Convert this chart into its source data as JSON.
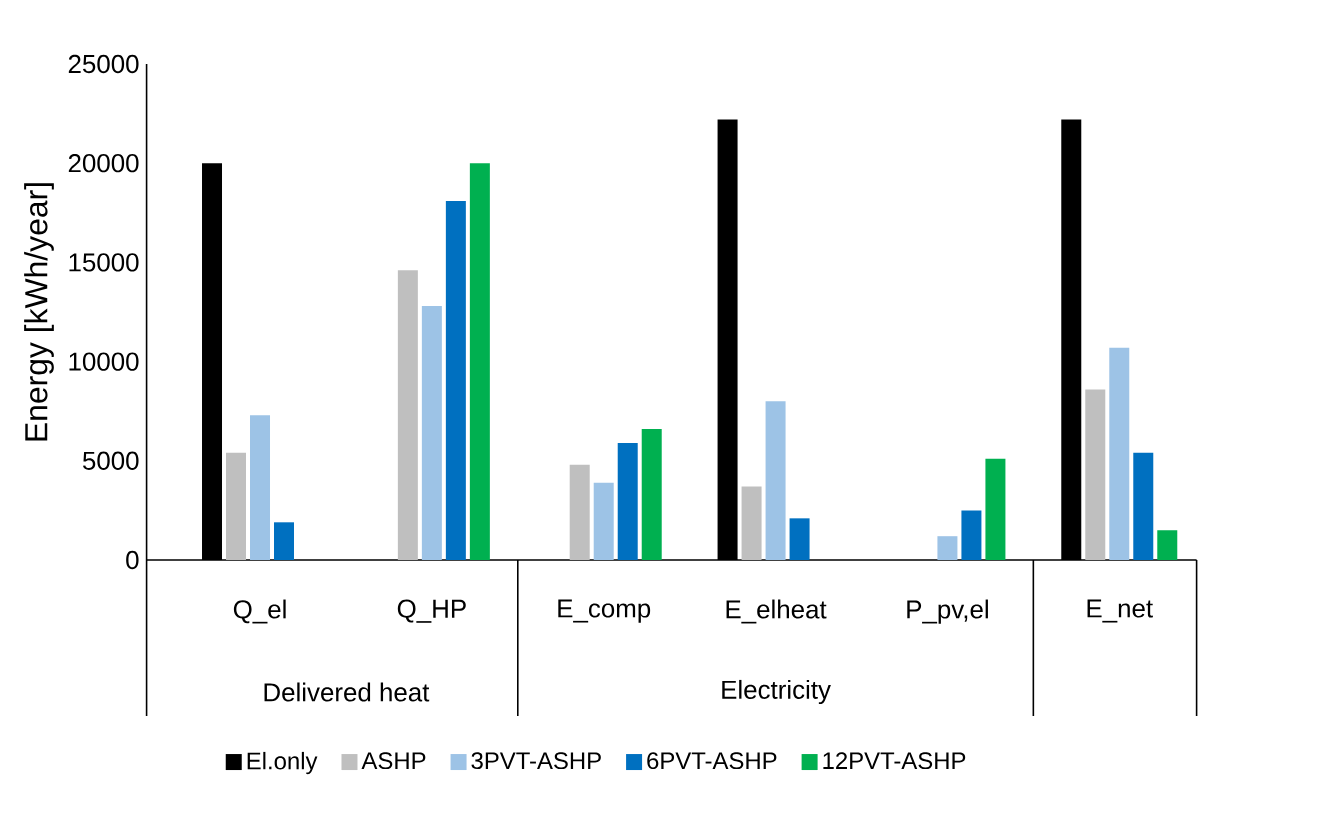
{
  "chart_data": {
    "type": "bar",
    "ylabel": "Energy [kWh/year]",
    "categories": [
      "Q_el",
      "Q_HP",
      "E_comp",
      "E_elheat",
      "P_pv,el",
      "E_net"
    ],
    "annotations": [
      "Delivered heat",
      "Electricity"
    ],
    "series": [
      {
        "name": "El.only",
        "color": "#000000",
        "values": [
          20000,
          null,
          null,
          22200,
          null,
          22200
        ]
      },
      {
        "name": "ASHP",
        "color": "#bfbfbf",
        "values": [
          5400,
          14600,
          4800,
          3700,
          null,
          8600
        ]
      },
      {
        "name": "3PVT-ASHP",
        "color": "#9dc3e6",
        "values": [
          7300,
          12800,
          3900,
          8000,
          1200,
          10700
        ]
      },
      {
        "name": "6PVT-ASHP",
        "color": "#0070c0",
        "values": [
          1900,
          18100,
          5900,
          2100,
          2500,
          5400
        ]
      },
      {
        "name": "12PVT-ASHP",
        "color": "#00b050",
        "values": [
          null,
          20000,
          6600,
          0,
          5100,
          1500
        ]
      }
    ],
    "ylim": [
      0,
      25000
    ],
    "yticks": [
      0,
      5000,
      10000,
      15000,
      20000,
      25000
    ],
    "grid": false,
    "legend": "bottom"
  }
}
